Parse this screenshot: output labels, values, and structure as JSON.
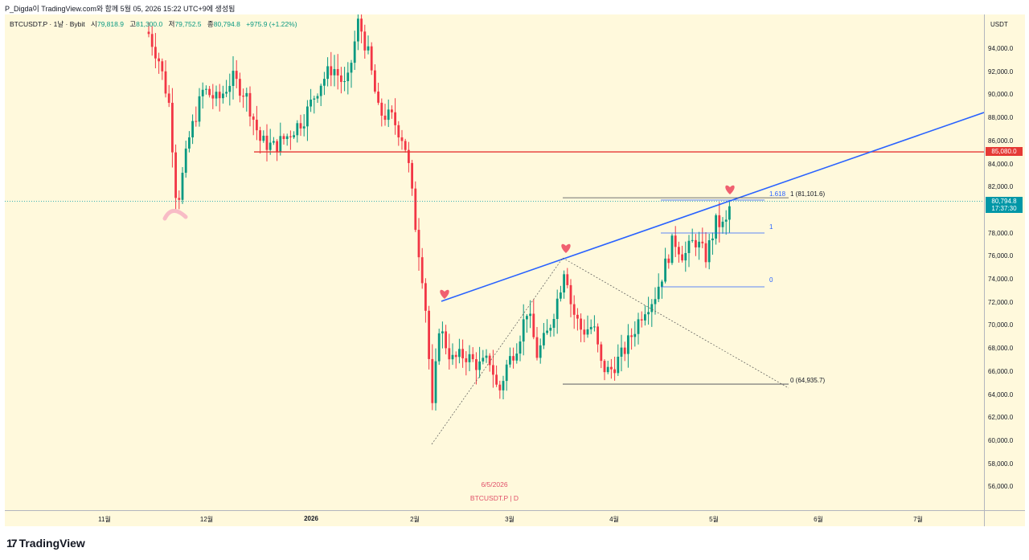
{
  "header": {
    "credit": "P_Digda이 TradingView.com와 함께 5월 05, 2026 15:22 UTC+9에 생성됨"
  },
  "legend": {
    "symbol": "BTCUSDT.P · 1날 · Bybit",
    "open_label": "시",
    "open": "79,818.9",
    "high_label": "고",
    "high": "81,300.0",
    "low_label": "저",
    "low": "79,752.5",
    "close_label": "종",
    "close": "80,794.8",
    "change": "+975.9 (+1.22%)"
  },
  "price_axis": {
    "unit": "USDT",
    "ticks": [
      "94,000.0",
      "92,000.0",
      "90,000.0",
      "88,000.0",
      "86,000.0",
      "84,000.0",
      "82,000.0",
      "80,000.0",
      "78,000.0",
      "76,000.0",
      "74,000.0",
      "72,000.0",
      "70,000.0",
      "68,000.0",
      "66,000.0",
      "64,000.0",
      "62,000.0",
      "60,000.0",
      "58,000.0",
      "56,000.0"
    ],
    "tick_values": [
      94000,
      92000,
      90000,
      88000,
      86000,
      84000,
      82000,
      80000,
      78000,
      76000,
      74000,
      72000,
      70000,
      68000,
      66000,
      64000,
      62000,
      60000,
      58000,
      56000
    ],
    "resistance_tag": "85,080.0",
    "resistance_value": 85080,
    "current_tag": "80,794.8",
    "current_value": 80794.8,
    "countdown": "17:37:30",
    "range": [
      54000,
      97000
    ]
  },
  "time_axis": {
    "labels": [
      "11월",
      "12월",
      "2026",
      "2월",
      "3월",
      "4월",
      "5월",
      "6월",
      "7월"
    ]
  },
  "watermark": {
    "date": "6/5/2026",
    "symbol": "BTCUSDT.P | D"
  },
  "fib_small": {
    "level_1618": "1.618",
    "level_1": "1",
    "level_0": "0"
  },
  "fib_large": {
    "level_1": "1 (81,101.6)",
    "level_0": "0 (64,935.7)"
  },
  "colors": {
    "up": "#089981",
    "down": "#f23645",
    "trendline": "#2962ff",
    "resistance": "#e53935",
    "current": "#0097a7",
    "background": "#fff9dc",
    "marker": "#f06070",
    "marker_low": "#f8bcc6"
  },
  "chart_data": {
    "type": "candlestick",
    "title": "",
    "xlabel": "",
    "ylabel": "",
    "ylim": [
      54000,
      97000
    ],
    "grid": false,
    "last_close": 80794.8,
    "horizontal_lines": [
      {
        "name": "resistance",
        "value": 85080
      }
    ],
    "fib_levels": [
      81101.6,
      64935.7
    ],
    "ohlc_sampled": [
      {
        "o": 95500,
        "h": 97000,
        "l": 94000,
        "c": 94500
      },
      {
        "o": 93500,
        "h": 95000,
        "l": 92000,
        "c": 92800
      },
      {
        "o": 90500,
        "h": 91500,
        "l": 86000,
        "c": 87000
      },
      {
        "o": 84500,
        "h": 86000,
        "l": 80000,
        "c": 84000
      },
      {
        "o": 87500,
        "h": 91000,
        "l": 85500,
        "c": 90000
      },
      {
        "o": 88500,
        "h": 93000,
        "l": 84000,
        "c": 91500
      },
      {
        "o": 89000,
        "h": 92500,
        "l": 86500,
        "c": 91000
      },
      {
        "o": 87500,
        "h": 89500,
        "l": 84500,
        "c": 85500
      },
      {
        "o": 87000,
        "h": 89500,
        "l": 85500,
        "c": 87500
      },
      {
        "o": 88500,
        "h": 92000,
        "l": 87500,
        "c": 91500
      },
      {
        "o": 91000,
        "h": 96500,
        "l": 90000,
        "c": 95000
      },
      {
        "o": 94500,
        "h": 96500,
        "l": 91500,
        "c": 93000
      },
      {
        "o": 90500,
        "h": 92000,
        "l": 88000,
        "c": 89000
      },
      {
        "o": 88000,
        "h": 90000,
        "l": 86000,
        "c": 88500
      },
      {
        "o": 83500,
        "h": 84500,
        "l": 75000,
        "c": 76000
      },
      {
        "o": 73000,
        "h": 74500,
        "l": 62000,
        "c": 63000
      },
      {
        "o": 69000,
        "h": 71000,
        "l": 66500,
        "c": 67500
      },
      {
        "o": 66500,
        "h": 70000,
        "l": 64500,
        "c": 68500
      },
      {
        "o": 67500,
        "h": 69500,
        "l": 63000,
        "c": 64500
      },
      {
        "o": 65500,
        "h": 71000,
        "l": 64000,
        "c": 70000
      },
      {
        "o": 71000,
        "h": 75000,
        "l": 69500,
        "c": 73500
      },
      {
        "o": 74000,
        "h": 76500,
        "l": 73000,
        "c": 75500
      },
      {
        "o": 74000,
        "h": 75500,
        "l": 69500,
        "c": 70500
      },
      {
        "o": 70000,
        "h": 71500,
        "l": 66500,
        "c": 67500
      },
      {
        "o": 67500,
        "h": 68500,
        "l": 65000,
        "c": 66000
      },
      {
        "o": 66500,
        "h": 69500,
        "l": 65500,
        "c": 68500
      },
      {
        "o": 69500,
        "h": 73000,
        "l": 68500,
        "c": 72500
      },
      {
        "o": 74000,
        "h": 77500,
        "l": 73000,
        "c": 76500
      },
      {
        "o": 77500,
        "h": 80000,
        "l": 74500,
        "c": 76000
      },
      {
        "o": 77500,
        "h": 79500,
        "l": 75000,
        "c": 78500
      },
      {
        "o": 79818.9,
        "h": 81300,
        "l": 79752.5,
        "c": 80794.8
      }
    ]
  }
}
